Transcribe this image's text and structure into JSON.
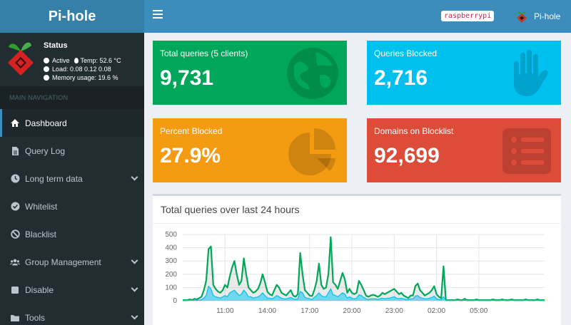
{
  "header": {
    "app_title": "Pi-hole",
    "hostname": "raspberrypi",
    "user_label": "Pi-hole"
  },
  "sidebar": {
    "status": {
      "title": "Status",
      "active": "Active",
      "temp": "Temp: 52.6 °C",
      "load": "Load:  0.08  0.12  0.08",
      "memory": "Memory usage:  19.6 %"
    },
    "nav_header": "MAIN NAVIGATION",
    "items": [
      {
        "label": "Dashboard",
        "icon": "home-icon"
      },
      {
        "label": "Query Log",
        "icon": "file-icon"
      },
      {
        "label": "Long term data",
        "icon": "clock-icon"
      },
      {
        "label": "Whitelist",
        "icon": "check-circle-icon"
      },
      {
        "label": "Blacklist",
        "icon": "ban-icon"
      },
      {
        "label": "Group Management",
        "icon": "users-icon"
      },
      {
        "label": "Disable",
        "icon": "stop-icon"
      },
      {
        "label": "Tools",
        "icon": "folder-icon"
      }
    ]
  },
  "stats": {
    "total_queries": {
      "label": "Total queries (5 clients)",
      "value": "9,731",
      "color": "#00a65a",
      "icon": "globe-icon"
    },
    "queries_blocked": {
      "label": "Queries Blocked",
      "value": "2,716",
      "color": "#00c0ef",
      "icon": "hand-icon"
    },
    "percent_blocked": {
      "label": "Percent Blocked",
      "value": "27.9%",
      "color": "#f39c12",
      "icon": "pie-chart-icon"
    },
    "domains_blocklist": {
      "label": "Domains on Blocklist",
      "value": "92,699",
      "color": "#dd4b39",
      "icon": "list-icon"
    }
  },
  "chart_panel": {
    "title": "Total queries over last 24 hours"
  },
  "chart_data": {
    "type": "area",
    "title": "Total queries over last 24 hours",
    "xlabel": "",
    "ylabel": "",
    "ylim": [
      0,
      500
    ],
    "yticks": [
      0,
      100,
      200,
      300,
      400,
      500
    ],
    "xticks": [
      "11:00",
      "14:00",
      "17:00",
      "20:00",
      "23:00",
      "02:00",
      "05:00"
    ],
    "x_start_hour": 8.0,
    "x_step_minutes": 10,
    "grid": true,
    "series": [
      {
        "color": "#00a65a",
        "fill": "rgba(150,150,150,0.2)",
        "values": [
          5,
          5,
          5,
          10,
          5,
          15,
          10,
          20,
          30,
          80,
          150,
          390,
          410,
          120,
          90,
          70,
          60,
          80,
          120,
          100,
          180,
          250,
          300,
          200,
          120,
          150,
          320,
          200,
          100,
          80,
          60,
          70,
          90,
          130,
          200,
          140,
          70,
          50,
          40,
          80,
          120,
          100,
          60,
          50,
          40,
          60,
          80,
          40,
          30,
          50,
          360,
          200,
          80,
          60,
          40,
          35,
          80,
          150,
          280,
          120,
          90,
          100,
          200,
          480,
          140,
          120,
          90,
          150,
          210,
          160,
          60,
          90,
          60,
          50,
          60,
          150,
          120,
          80,
          40,
          30,
          40,
          45,
          40,
          30,
          40,
          60,
          50,
          60,
          70,
          80,
          90,
          70,
          50,
          60,
          40,
          30,
          20,
          40,
          40,
          110,
          130,
          80,
          60,
          40,
          50,
          60,
          80,
          110,
          50,
          30,
          20,
          260,
          5,
          5,
          5,
          5,
          5,
          10,
          5,
          5,
          15,
          5,
          5,
          5,
          5,
          10,
          5,
          5,
          5,
          5,
          5,
          5,
          10,
          5,
          5,
          5,
          10,
          5,
          5,
          5,
          10,
          5,
          5,
          5,
          5,
          5,
          10,
          5,
          5,
          5,
          5,
          10,
          5,
          5,
          5
        ]
      },
      {
        "color": "#00c0ef",
        "fill": "rgba(0,192,239,0.5)",
        "values": [
          2,
          2,
          2,
          3,
          2,
          4,
          3,
          5,
          8,
          20,
          40,
          110,
          90,
          40,
          30,
          25,
          20,
          30,
          40,
          30,
          60,
          70,
          80,
          60,
          40,
          50,
          80,
          60,
          30,
          30,
          20,
          25,
          30,
          40,
          60,
          40,
          20,
          20,
          15,
          25,
          40,
          30,
          20,
          15,
          15,
          20,
          25,
          15,
          10,
          15,
          70,
          60,
          25,
          20,
          15,
          10,
          25,
          40,
          60,
          40,
          30,
          30,
          60,
          90,
          45,
          40,
          30,
          45,
          60,
          50,
          20,
          30,
          20,
          15,
          20,
          45,
          40,
          25,
          15,
          10,
          15,
          15,
          15,
          10,
          15,
          20,
          15,
          20,
          20,
          25,
          30,
          20,
          15,
          20,
          15,
          10,
          8,
          15,
          15,
          35,
          40,
          25,
          20,
          15,
          15,
          20,
          25,
          35,
          15,
          10,
          8,
          30,
          2,
          2,
          2,
          2,
          2,
          3,
          2,
          2,
          4,
          2,
          2,
          2,
          2,
          3,
          2,
          2,
          2,
          2,
          2,
          2,
          3,
          2,
          2,
          2,
          3,
          2,
          2,
          2,
          3,
          2,
          2,
          2,
          2,
          2,
          3,
          2,
          2,
          2,
          2,
          3,
          2,
          2,
          2
        ]
      }
    ]
  }
}
